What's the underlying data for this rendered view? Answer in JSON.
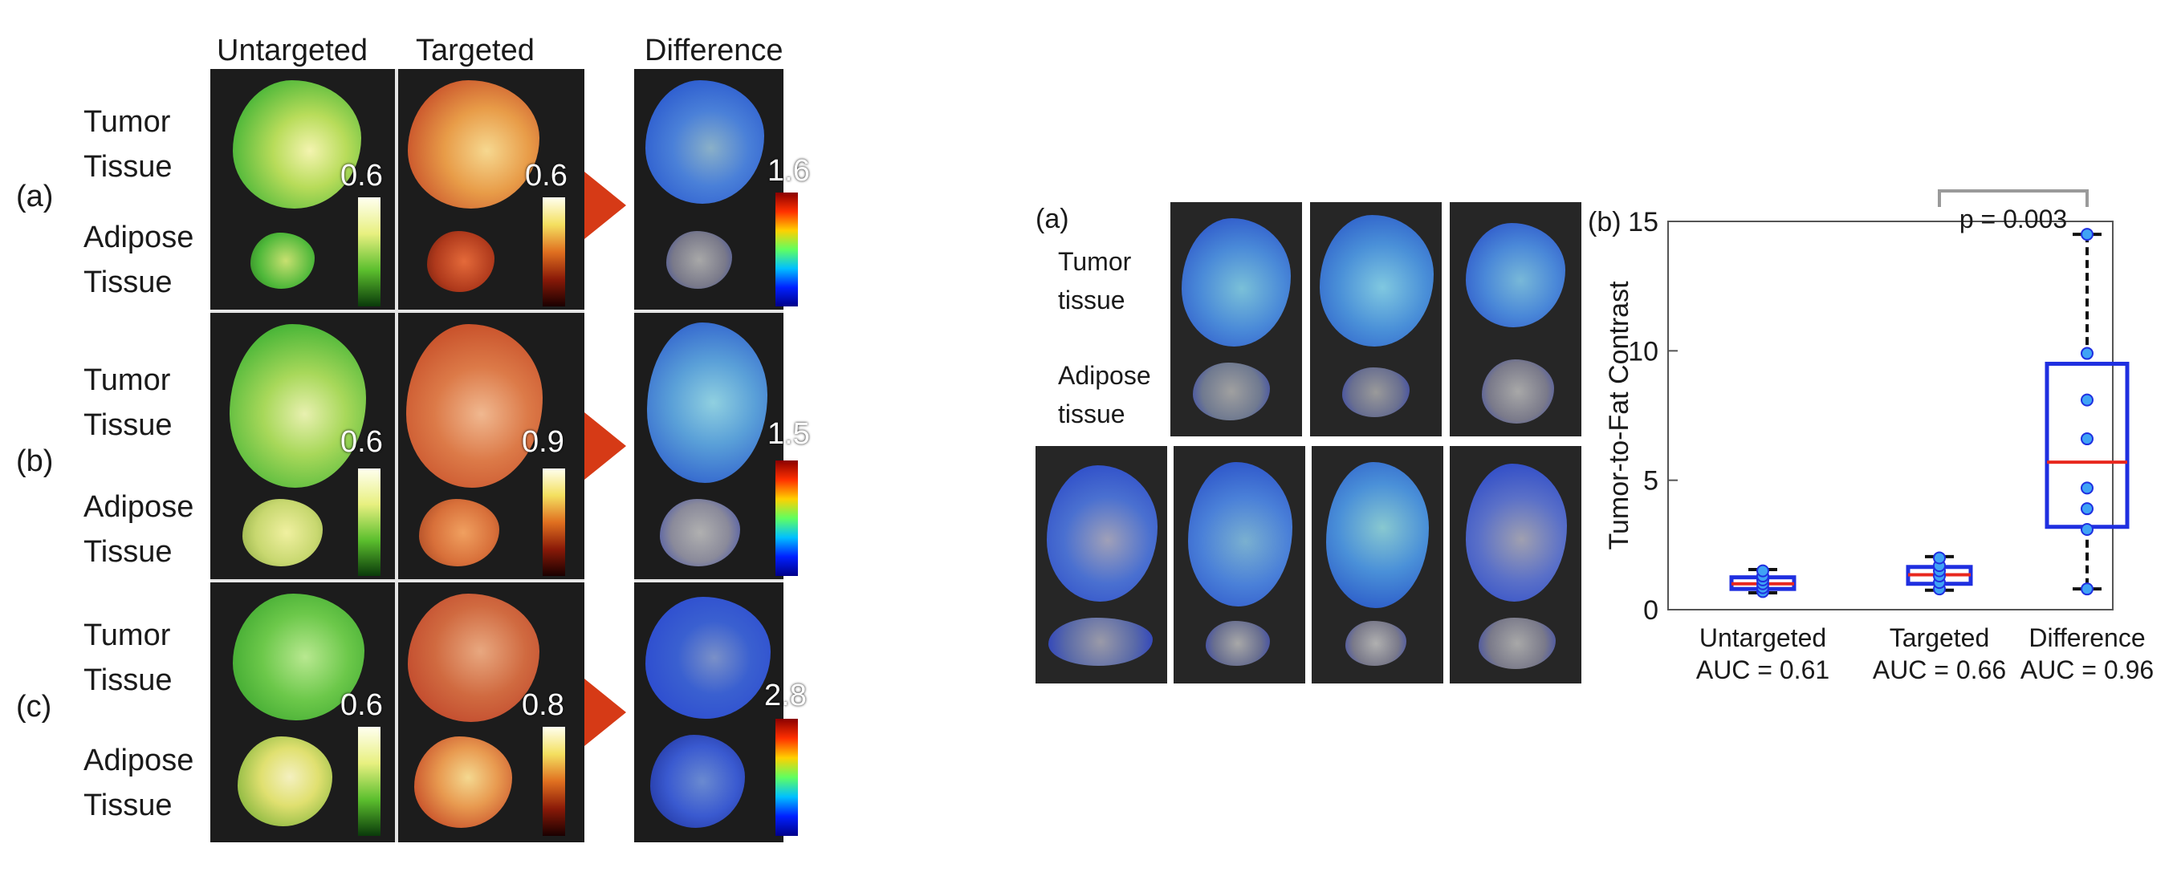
{
  "left_figure": {
    "column_headers": [
      "Untargeted",
      "Targeted",
      "Difference"
    ],
    "rows": [
      {
        "tag": "(a)",
        "tumor_label": [
          "Tumor",
          "Tissue"
        ],
        "adipose_label": [
          "Adipose",
          "Tissue"
        ],
        "untargeted_max": "0.6",
        "targeted_max": "0.6",
        "difference_max": "1.6"
      },
      {
        "tag": "(b)",
        "tumor_label": [
          "Tumor",
          "Tissue"
        ],
        "adipose_label": [
          "Adipose",
          "Tissue"
        ],
        "untargeted_max": "0.6",
        "targeted_max": "0.9",
        "difference_max": "1.5"
      },
      {
        "tag": "(c)",
        "tumor_label": [
          "Tumor",
          "Tissue"
        ],
        "adipose_label": [
          "Adipose",
          "Tissue"
        ],
        "untargeted_max": "0.6",
        "targeted_max": "0.8",
        "difference_max": "2.8"
      }
    ],
    "colors": {
      "untargeted": "#4fb83a",
      "targeted": "#c8502a",
      "difference": "#2f5fd0",
      "arrow": "#d63a16"
    }
  },
  "right_figure": {
    "panel_a": {
      "tag": "(a)",
      "tumor_label": [
        "Tumor",
        "tissue"
      ],
      "adipose_label": [
        "Adipose",
        "tissue"
      ]
    },
    "panel_b": {
      "tag": "(b)"
    },
    "chart_data": {
      "type": "box",
      "ylabel": "Tumor-to-Fat Contrast",
      "ylim": [
        0,
        15
      ],
      "yticks": [
        "0",
        "5",
        "10",
        "15"
      ],
      "categories": [
        {
          "name": "Untargeted",
          "auc": "AUC = 0.61",
          "q1": 0.8,
          "median": 1.0,
          "q3": 1.25,
          "whisker_low": 0.65,
          "whisker_high": 1.55,
          "points": [
            0.7,
            0.85,
            1.0,
            1.15,
            1.3,
            1.5
          ]
        },
        {
          "name": "Targeted",
          "auc": "AUC = 0.66",
          "q1": 1.0,
          "median": 1.35,
          "q3": 1.65,
          "whisker_low": 0.75,
          "whisker_high": 2.05,
          "points": [
            0.8,
            1.05,
            1.3,
            1.5,
            1.7,
            2.0
          ]
        },
        {
          "name": "Difference",
          "auc": "AUC = 0.96",
          "q1": 3.2,
          "median": 5.7,
          "q3": 9.5,
          "whisker_low": 0.8,
          "whisker_high": 14.5,
          "points": [
            0.8,
            3.1,
            3.9,
            4.7,
            6.6,
            8.1,
            9.9,
            14.5
          ]
        }
      ],
      "significance": {
        "label": "p = 0.003",
        "from": "Targeted",
        "to": "Difference"
      },
      "colors": {
        "box": "#1f2fe0",
        "median": "#e8271e",
        "point_fill": "#3fa3f5",
        "whisker": "#111111",
        "bracket": "#9a9a9a"
      }
    }
  }
}
